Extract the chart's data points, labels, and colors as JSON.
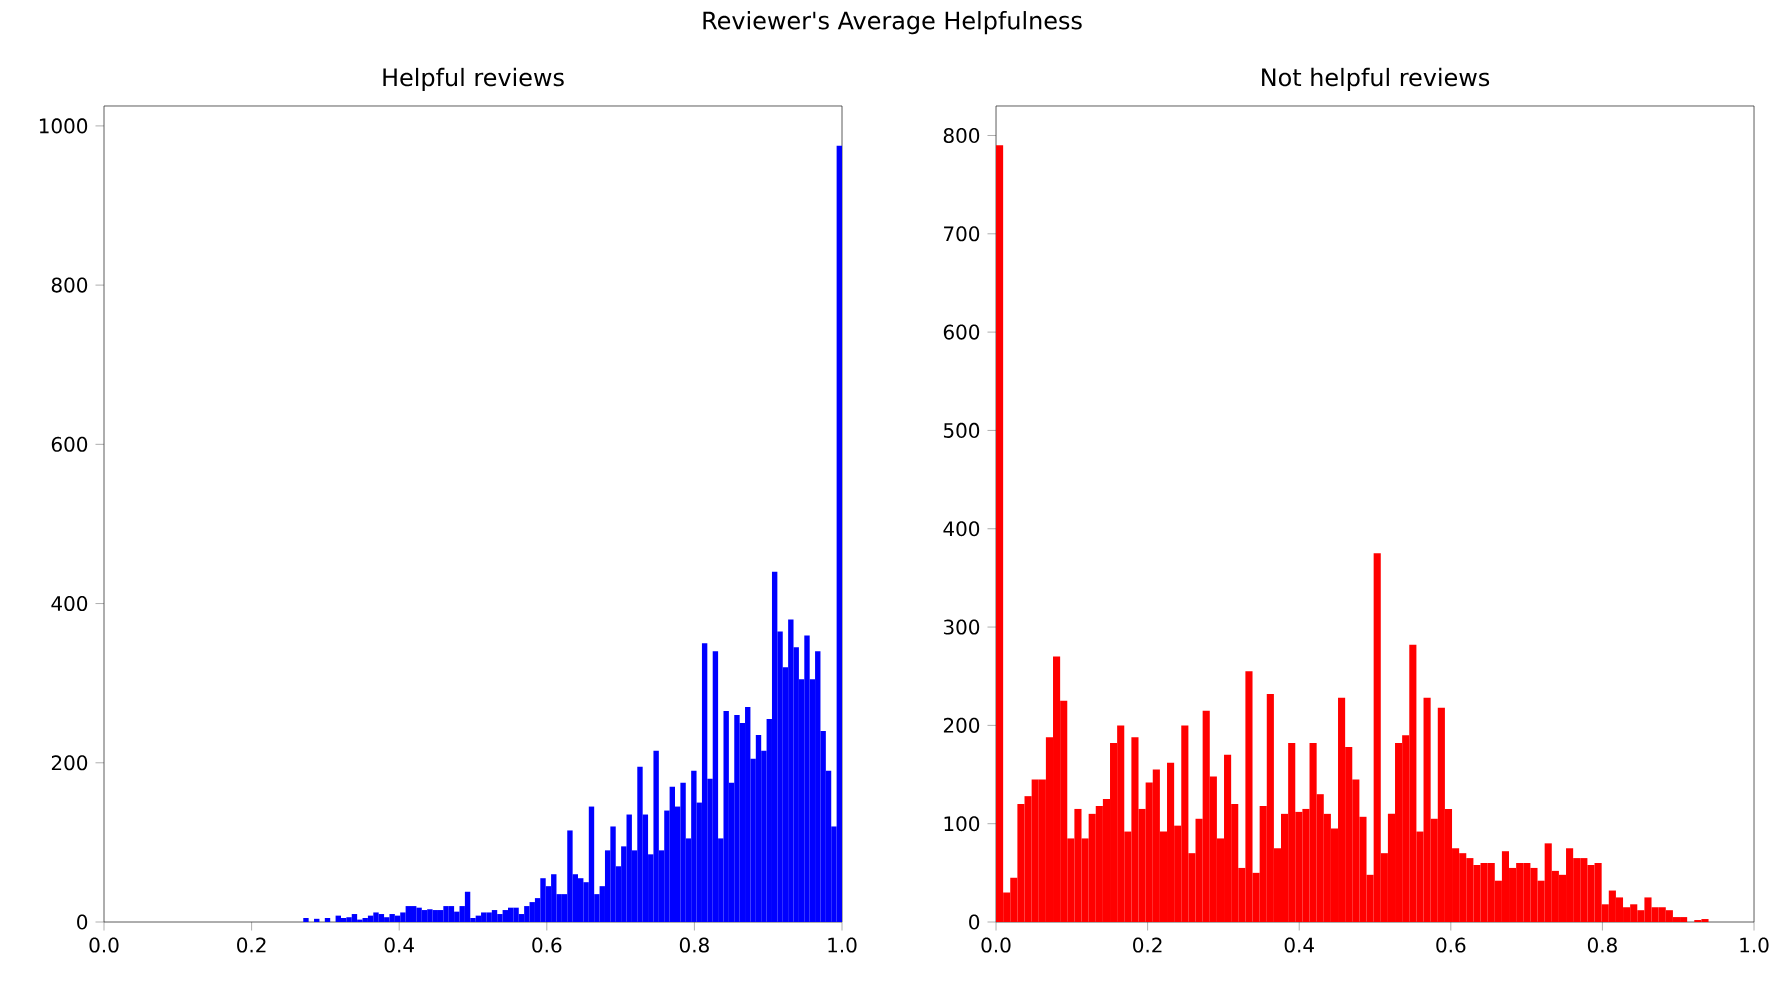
{
  "chart_data": [
    {
      "type": "histogram",
      "title": "Helpful reviews",
      "annotations": [
        "Reviewer's Average Helpfulness"
      ],
      "color": "#0000ff",
      "bins": [
        0.27,
        0.2773,
        0.2846,
        0.2919,
        0.2992,
        0.3065,
        0.3138,
        0.3211,
        0.3284,
        0.3357,
        0.343,
        0.3503,
        0.3576,
        0.3649,
        0.3722,
        0.3795,
        0.3868,
        0.3941,
        0.4014,
        0.4087,
        0.416,
        0.4233,
        0.4306,
        0.4379,
        0.4452,
        0.4525,
        0.4598,
        0.4671,
        0.4744,
        0.4817,
        0.489,
        0.4963,
        0.5036,
        0.5109,
        0.5182,
        0.5255,
        0.5328,
        0.5401,
        0.5474,
        0.5547,
        0.562,
        0.5693,
        0.5766,
        0.5839,
        0.5912,
        0.5985,
        0.6058,
        0.6131,
        0.6204,
        0.6277,
        0.635,
        0.6423,
        0.6496,
        0.6569,
        0.6642,
        0.6715,
        0.6788,
        0.6861,
        0.6934,
        0.7007,
        0.708,
        0.7153,
        0.7226,
        0.7299,
        0.7372,
        0.7445,
        0.7518,
        0.7591,
        0.7664,
        0.7737,
        0.781,
        0.7883,
        0.7956,
        0.8029,
        0.8102,
        0.8175,
        0.8248,
        0.8321,
        0.8394,
        0.8467,
        0.854,
        0.8613,
        0.8686,
        0.8759,
        0.8832,
        0.8905,
        0.8978,
        0.9051,
        0.9124,
        0.9197,
        0.927,
        0.9343,
        0.9416,
        0.9489,
        0.9562,
        0.9635,
        0.9708,
        0.9781,
        0.9854,
        0.9927,
        1.0
      ],
      "values": [
        5,
        0,
        4,
        0,
        5,
        0,
        8,
        5,
        6,
        10,
        3,
        5,
        8,
        12,
        10,
        6,
        10,
        8,
        12,
        20,
        20,
        18,
        15,
        16,
        15,
        15,
        20,
        20,
        13,
        20,
        38,
        5,
        8,
        12,
        12,
        15,
        10,
        15,
        18,
        18,
        10,
        20,
        25,
        30,
        55,
        45,
        60,
        35,
        35,
        115,
        60,
        55,
        50,
        145,
        35,
        45,
        90,
        120,
        70,
        95,
        135,
        90,
        195,
        135,
        85,
        215,
        90,
        140,
        170,
        145,
        175,
        105,
        190,
        150,
        350,
        180,
        340,
        105,
        265,
        175,
        260,
        250,
        270,
        205,
        235,
        215,
        255,
        440,
        365,
        320,
        380,
        345,
        305,
        360,
        305,
        340,
        240,
        190,
        120,
        975
      ],
      "xlim": [
        0,
        1
      ],
      "ylim": [
        0,
        1025
      ],
      "xticks": [
        {
          "value": 0,
          "label": "0.0"
        },
        {
          "value": 0.2,
          "label": "0.2"
        },
        {
          "value": 0.4,
          "label": "0.4"
        },
        {
          "value": 0.6,
          "label": "0.6"
        },
        {
          "value": 0.8,
          "label": "0.8"
        },
        {
          "value": 1,
          "label": "1.0"
        }
      ],
      "yticks": [
        0,
        200,
        400,
        600,
        800,
        1000
      ]
    },
    {
      "type": "histogram",
      "title": "Not helpful reviews",
      "color": "#ff0000",
      "bins": [
        0,
        0.0094,
        0.0188,
        0.0282,
        0.0376,
        0.047,
        0.0564,
        0.0658,
        0.0752,
        0.0846,
        0.094,
        0.1034,
        0.1128,
        0.1222,
        0.1316,
        0.141,
        0.1504,
        0.1598,
        0.1692,
        0.1786,
        0.188,
        0.1974,
        0.2068,
        0.2162,
        0.2256,
        0.235,
        0.2444,
        0.2538,
        0.2632,
        0.2726,
        0.282,
        0.2914,
        0.3008,
        0.3102,
        0.3196,
        0.329,
        0.3384,
        0.3478,
        0.3572,
        0.3666,
        0.376,
        0.3854,
        0.3948,
        0.4042,
        0.4136,
        0.423,
        0.4324,
        0.4418,
        0.4512,
        0.4606,
        0.47,
        0.4794,
        0.4888,
        0.4982,
        0.5076,
        0.517,
        0.5264,
        0.5358,
        0.5452,
        0.5546,
        0.564,
        0.5734,
        0.5828,
        0.5922,
        0.6016,
        0.611,
        0.6204,
        0.6298,
        0.6392,
        0.6486,
        0.658,
        0.6674,
        0.6768,
        0.6862,
        0.6956,
        0.705,
        0.7144,
        0.7238,
        0.7332,
        0.7426,
        0.752,
        0.7614,
        0.7708,
        0.7802,
        0.7896,
        0.799,
        0.8084,
        0.8178,
        0.8272,
        0.8366,
        0.846,
        0.8554,
        0.8648,
        0.8742,
        0.8836,
        0.893,
        0.9024,
        0.9118,
        0.9212,
        0.9306,
        0.94
      ],
      "values": [
        790,
        30,
        45,
        120,
        128,
        145,
        145,
        188,
        270,
        225,
        85,
        115,
        85,
        110,
        118,
        125,
        182,
        200,
        92,
        188,
        115,
        142,
        155,
        92,
        162,
        98,
        200,
        70,
        105,
        215,
        148,
        85,
        170,
        120,
        55,
        255,
        50,
        118,
        232,
        75,
        110,
        182,
        112,
        115,
        182,
        130,
        110,
        95,
        228,
        178,
        145,
        107,
        48,
        375,
        70,
        110,
        182,
        190,
        282,
        92,
        228,
        105,
        218,
        115,
        75,
        70,
        65,
        58,
        60,
        60,
        42,
        72,
        55,
        60,
        60,
        55,
        42,
        80,
        52,
        48,
        75,
        65,
        65,
        58,
        60,
        18,
        32,
        25,
        15,
        18,
        12,
        25,
        15,
        15,
        12,
        5,
        5,
        0,
        2,
        3
      ],
      "xlim": [
        0,
        1
      ],
      "ylim": [
        0,
        830
      ],
      "xticks": [
        {
          "value": 0,
          "label": "0.0"
        },
        {
          "value": 0.2,
          "label": "0.2"
        },
        {
          "value": 0.4,
          "label": "0.4"
        },
        {
          "value": 0.6,
          "label": "0.6"
        },
        {
          "value": 0.8,
          "label": "0.8"
        },
        {
          "value": 1,
          "label": "1.0"
        }
      ],
      "yticks": [
        0,
        100,
        200,
        300,
        400,
        500,
        600,
        700,
        800
      ]
    }
  ]
}
